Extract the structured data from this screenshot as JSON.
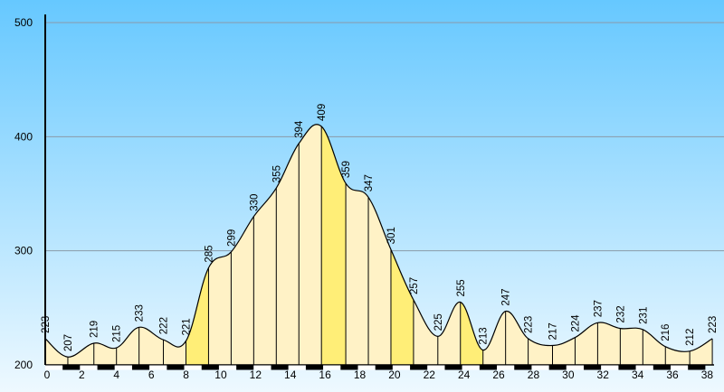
{
  "colors": {
    "sky_top": "#66c8ff",
    "sky_bottom": "#eef9ff",
    "fill_light": "#fff2c6",
    "fill_highlight": "#ffee77",
    "outline": "#000000",
    "gridline": "#8a9aa8"
  },
  "chart_data": {
    "type": "area",
    "title": "",
    "xlabel": "",
    "ylabel": "",
    "xlim": [
      0,
      38.5
    ],
    "ylim": [
      200,
      500
    ],
    "y_ticks": [
      "200",
      "300",
      "400",
      "500"
    ],
    "x_ticks": [
      "0",
      "2",
      "4",
      "6",
      "8",
      "10",
      "12",
      "14",
      "16",
      "18",
      "20",
      "22",
      "24",
      "26",
      "28",
      "30",
      "32",
      "34",
      "36",
      "38"
    ],
    "grid": true,
    "points": [
      {
        "x": 0,
        "y": 223,
        "label": "223"
      },
      {
        "x": 1.3,
        "y": 207,
        "label": "207"
      },
      {
        "x": 2.8,
        "y": 219,
        "label": "219"
      },
      {
        "x": 4.1,
        "y": 215,
        "label": "215"
      },
      {
        "x": 5.4,
        "y": 233,
        "label": "233"
      },
      {
        "x": 6.8,
        "y": 222,
        "label": "222"
      },
      {
        "x": 8.1,
        "y": 221,
        "label": "221"
      },
      {
        "x": 9.4,
        "y": 285,
        "label": "285"
      },
      {
        "x": 10.7,
        "y": 299,
        "label": "299"
      },
      {
        "x": 12.0,
        "y": 330,
        "label": "330"
      },
      {
        "x": 13.3,
        "y": 355,
        "label": "355"
      },
      {
        "x": 14.6,
        "y": 394,
        "label": "394"
      },
      {
        "x": 15.9,
        "y": 409,
        "label": "409"
      },
      {
        "x": 17.3,
        "y": 359,
        "label": "359"
      },
      {
        "x": 18.6,
        "y": 347,
        "label": "347"
      },
      {
        "x": 19.9,
        "y": 301,
        "label": "301"
      },
      {
        "x": 21.2,
        "y": 257,
        "label": "257"
      },
      {
        "x": 22.6,
        "y": 225,
        "label": "225"
      },
      {
        "x": 23.9,
        "y": 255,
        "label": "255"
      },
      {
        "x": 25.2,
        "y": 213,
        "label": "213"
      },
      {
        "x": 26.5,
        "y": 247,
        "label": "247"
      },
      {
        "x": 27.8,
        "y": 223,
        "label": "223"
      },
      {
        "x": 29.2,
        "y": 217,
        "label": "217"
      },
      {
        "x": 30.5,
        "y": 224,
        "label": "224"
      },
      {
        "x": 31.8,
        "y": 237,
        "label": "237"
      },
      {
        "x": 33.1,
        "y": 232,
        "label": "232"
      },
      {
        "x": 34.4,
        "y": 231,
        "label": "231"
      },
      {
        "x": 35.7,
        "y": 216,
        "label": "216"
      },
      {
        "x": 37.1,
        "y": 212,
        "label": "212"
      },
      {
        "x": 38.4,
        "y": 223,
        "label": "223"
      }
    ],
    "highlight_segments": [
      {
        "x0": 8.1,
        "x1": 9.4
      },
      {
        "x0": 15.9,
        "x1": 17.3
      },
      {
        "x0": 19.9,
        "x1": 21.2
      },
      {
        "x0": 23.9,
        "x1": 25.2
      }
    ]
  }
}
